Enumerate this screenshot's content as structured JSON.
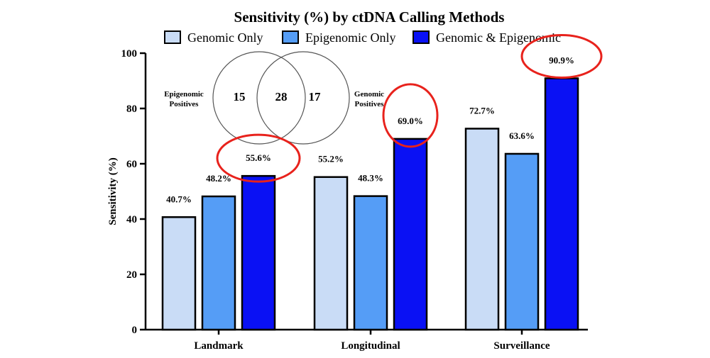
{
  "chart_data": {
    "type": "bar",
    "title": "Sensitivity (%) by ctDNA Calling Methods",
    "xlabel": "",
    "ylabel": "Sensitivity (%)",
    "ylim": [
      0,
      100
    ],
    "yticks": [
      0,
      20,
      40,
      60,
      80,
      100
    ],
    "grid": false,
    "legend_position": "top",
    "categories": [
      "Landmark",
      "Longitudinal",
      "Surveillance"
    ],
    "series": [
      {
        "name": "Genomic Only",
        "color": "#c9dcf6",
        "values": [
          40.7,
          55.2,
          72.7
        ],
        "labels": [
          "40.7%",
          "55.2%",
          "72.7%"
        ]
      },
      {
        "name": "Epigenomic Only",
        "color": "#559df6",
        "values": [
          48.2,
          48.3,
          63.6
        ],
        "labels": [
          "48.2%",
          "48.3%",
          "63.6%"
        ]
      },
      {
        "name": "Genomic & Epigenomic",
        "color": "#0a11f4",
        "values": [
          55.6,
          69.0,
          90.9
        ],
        "labels": [
          "55.6%",
          "69.0%",
          "90.9%"
        ]
      }
    ],
    "highlight_color": "#e8221c",
    "highlighted_series": "Genomic & Epigenomic",
    "venn": {
      "left_label": "Epigenomic\nPositives",
      "right_label": "Genomic\nPositives",
      "left_only": "15",
      "overlap": "28",
      "right_only": "17"
    }
  }
}
